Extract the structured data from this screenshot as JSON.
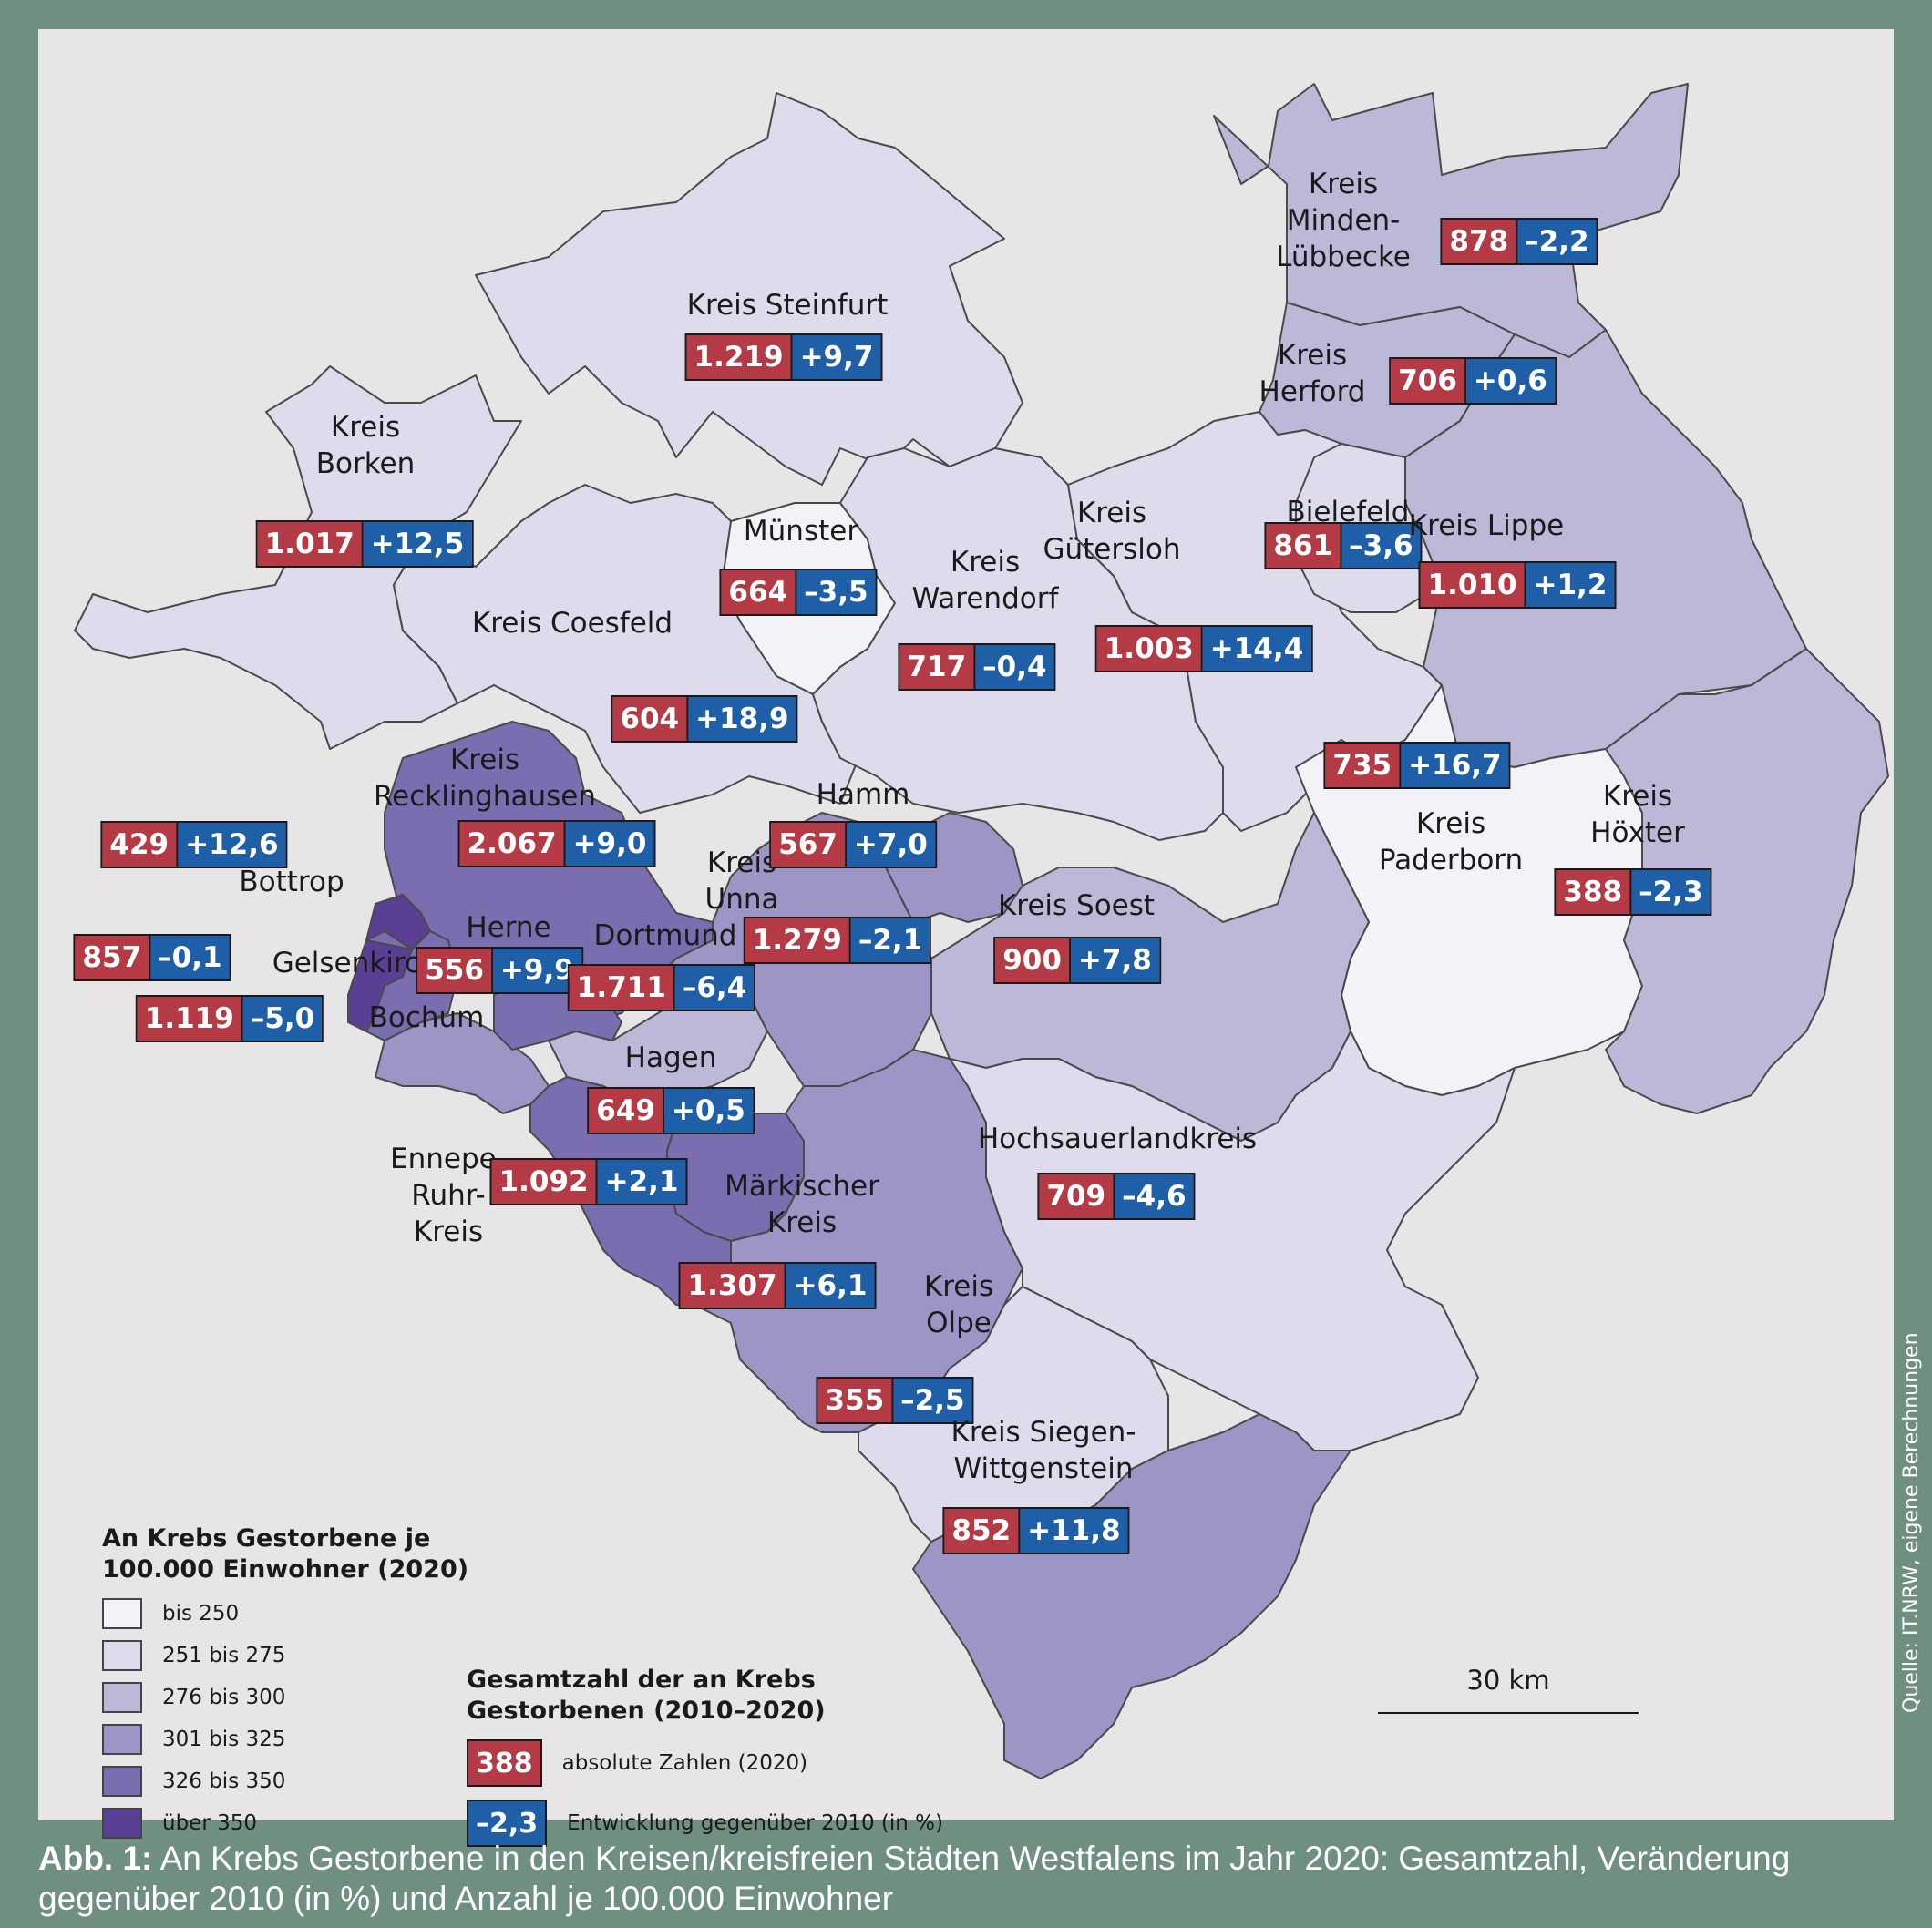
{
  "legend": {
    "title": "An Krebs Gestorbene je\n100.000 Einwohner (2020)",
    "classes": [
      {
        "label": "bis 250",
        "color": "#f3f2f7"
      },
      {
        "label": "251 bis 275",
        "color": "#dedcec"
      },
      {
        "label": "276 bis 300",
        "color": "#bcb8d8"
      },
      {
        "label": "301 bis 325",
        "color": "#9d95c6"
      },
      {
        "label": "326 bis 350",
        "color": "#7a6db0"
      },
      {
        "label": "über 350",
        "color": "#5a3f94"
      }
    ]
  },
  "legend2": {
    "title": "Gesamtzahl der an Krebs\nGestorbenen (2010–2020)",
    "abs_sample": "388",
    "abs_label": "absolute Zahlen (2020)",
    "chg_sample": "–2,3",
    "chg_label": "Entwicklung gegenüber 2010 (in %)"
  },
  "scale_label": "30 km",
  "source": "Quelle: IT.NRW, eigene Berechnungen",
  "caption": {
    "prefix": "Abb. 1:",
    "text": " An Krebs Gestorbene in den Kreisen/kreisfreien Städten Westfalens im Jahr 2020: Gesamtzahl, Veränderung gegenüber 2010 (in %) und Anzahl je 100.000 Einwohner"
  },
  "regions": [
    {
      "id": "minden",
      "name": "Kreis\nMinden-\nLübbecke",
      "abs": "878",
      "chg": "–2,2",
      "class": "276 bis 300"
    },
    {
      "id": "herford",
      "name": "Kreis\nHerford",
      "abs": "706",
      "chg": "+0,6",
      "class": "276 bis 300"
    },
    {
      "id": "steinfurt",
      "name": "Kreis Steinfurt",
      "abs": "1.219",
      "chg": "+9,7",
      "class": "251 bis 275"
    },
    {
      "id": "borken",
      "name": "Kreis\nBorken",
      "abs": "1.017",
      "chg": "+12,5",
      "class": "251 bis 275"
    },
    {
      "id": "muenster",
      "name": "Münster",
      "abs": "664",
      "chg": "–3,5",
      "class": "bis 250"
    },
    {
      "id": "coesfeld",
      "name": "Kreis Coesfeld",
      "abs": "604",
      "chg": "+18,9",
      "class": "251 bis 275"
    },
    {
      "id": "warendorf",
      "name": "Kreis\nWarendorf",
      "abs": "717",
      "chg": "–0,4",
      "class": "251 bis 275"
    },
    {
      "id": "guetersloh",
      "name": "Kreis\nGütersloh",
      "abs": "1.003",
      "chg": "+14,4",
      "class": "251 bis 275"
    },
    {
      "id": "bielefeld",
      "name": "Bielefeld",
      "abs": "861",
      "chg": "–3,6",
      "class": "251 bis 275"
    },
    {
      "id": "lippe",
      "name": "Kreis Lippe",
      "abs": "1.010",
      "chg": "+1,2",
      "class": "276 bis 300"
    },
    {
      "id": "paderborn",
      "name": "Kreis\nPaderborn",
      "abs": "735",
      "chg": "+16,7",
      "class": "bis 250"
    },
    {
      "id": "hoexter",
      "name": "Kreis\nHöxter",
      "abs": "388",
      "chg": "–2,3",
      "class": "276 bis 300"
    },
    {
      "id": "recklinghausen",
      "name": "Kreis\nRecklinghausen",
      "abs": "2.067",
      "chg": "+9,0",
      "class": "326 bis 350"
    },
    {
      "id": "bottrop",
      "name": "Bottrop",
      "abs": "429",
      "chg": "+12,6",
      "class": "über 350"
    },
    {
      "id": "gelsenkirchen",
      "name": "Gelsenkirchen",
      "abs": "857",
      "chg": "–0,1",
      "class": "326 bis 350"
    },
    {
      "id": "bochum",
      "name": "Bochum",
      "abs": "1.119",
      "chg": "–5,0",
      "class": "301 bis 325"
    },
    {
      "id": "herne",
      "name": "Herne",
      "abs": "556",
      "chg": "+9,9",
      "class": "326 bis 350"
    },
    {
      "id": "dortmund",
      "name": "Dortmund",
      "abs": "1.711",
      "chg": "–6,4",
      "class": "276 bis 300"
    },
    {
      "id": "unna",
      "name": "Kreis\nUnna",
      "abs": "1.279",
      "chg": "–2,1",
      "class": "301 bis 325"
    },
    {
      "id": "hamm",
      "name": "Hamm",
      "abs": "567",
      "chg": "+7,0",
      "class": "301 bis 325"
    },
    {
      "id": "soest",
      "name": "Kreis Soest",
      "abs": "900",
      "chg": "+7,8",
      "class": "276 bis 300"
    },
    {
      "id": "hagen",
      "name": "Hagen",
      "abs": "649",
      "chg": "+0,5",
      "class": "326 bis 350"
    },
    {
      "id": "ennepe",
      "name": "Ennepe-\nRuhr-\nKreis",
      "abs": "1.092",
      "chg": "+2,1",
      "class": "326 bis 350"
    },
    {
      "id": "maerkischer",
      "name": "Märkischer\nKreis",
      "abs": "1.307",
      "chg": "+6,1",
      "class": "301 bis 325"
    },
    {
      "id": "hochsauerland",
      "name": "Hochsauerlandkreis",
      "abs": "709",
      "chg": "–4,6",
      "class": "251 bis 275"
    },
    {
      "id": "olpe",
      "name": "Kreis\nOlpe",
      "abs": "355",
      "chg": "–2,5",
      "class": "251 bis 275"
    },
    {
      "id": "siegen",
      "name": "Kreis Siegen-\nWittgenstein",
      "abs": "852",
      "chg": "+11,8",
      "class": "301 bis 325"
    }
  ]
}
